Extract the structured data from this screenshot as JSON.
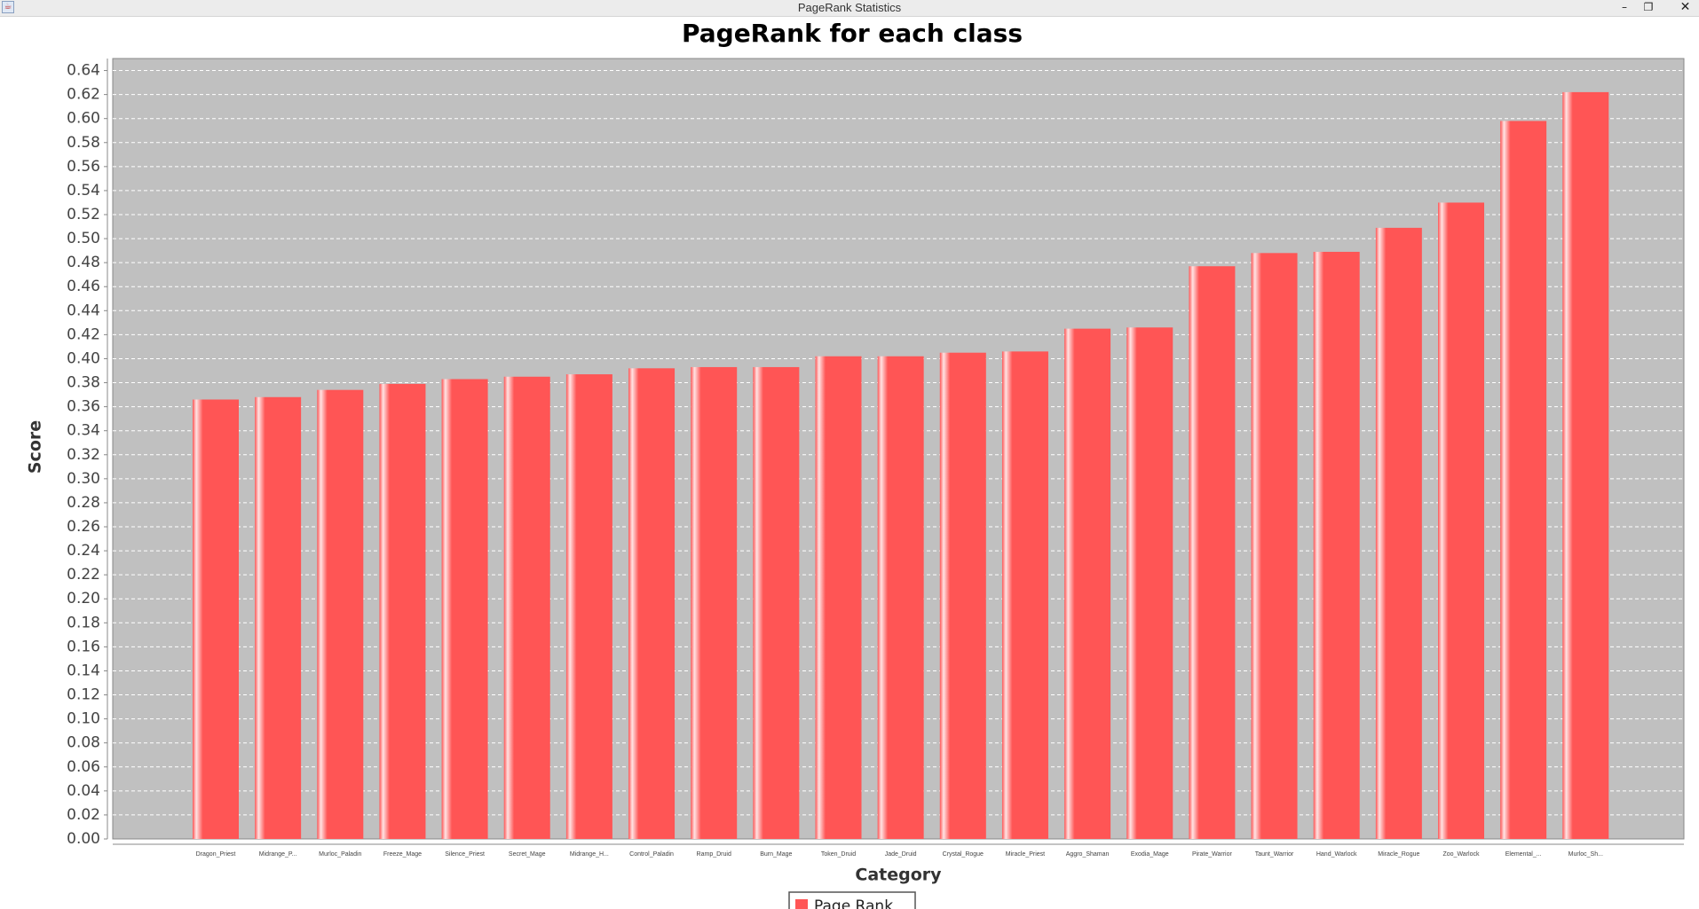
{
  "window": {
    "title": "PageRank Statistics"
  },
  "colors": {
    "bar": "#ff5555",
    "bar_highlight": "#ffe3e3",
    "plot_bg": "#c0c0c0",
    "grid": "#ffffff"
  },
  "chart_data": {
    "type": "bar",
    "title": "PageRank for each class",
    "xlabel": "Category",
    "ylabel": "Score",
    "ylim": [
      0,
      0.65
    ],
    "ytick_step": 0.02,
    "grid": true,
    "legend": "bottom",
    "categories": [
      "Dragon_Priest",
      "Midrange_P...",
      "Murloc_Paladin",
      "Freeze_Mage",
      "Silence_Priest",
      "Secret_Mage",
      "Midrange_H...",
      "Control_Paladin",
      "Ramp_Druid",
      "Burn_Mage",
      "Token_Druid",
      "Jade_Druid",
      "Crystal_Rogue",
      "Miracle_Priest",
      "Aggro_Shaman",
      "Exodia_Mage",
      "Pirate_Warrior",
      "Taunt_Warrior",
      "Hand_Warlock",
      "Miracle_Rogue",
      "Zoo_Warlock",
      "Elemental_...",
      "Murloc_Sh..."
    ],
    "series": [
      {
        "name": "Page Rank",
        "values": [
          0.366,
          0.368,
          0.374,
          0.379,
          0.383,
          0.385,
          0.387,
          0.392,
          0.393,
          0.393,
          0.402,
          0.402,
          0.405,
          0.406,
          0.425,
          0.426,
          0.477,
          0.488,
          0.489,
          0.509,
          0.53,
          0.598,
          0.622
        ]
      }
    ]
  }
}
